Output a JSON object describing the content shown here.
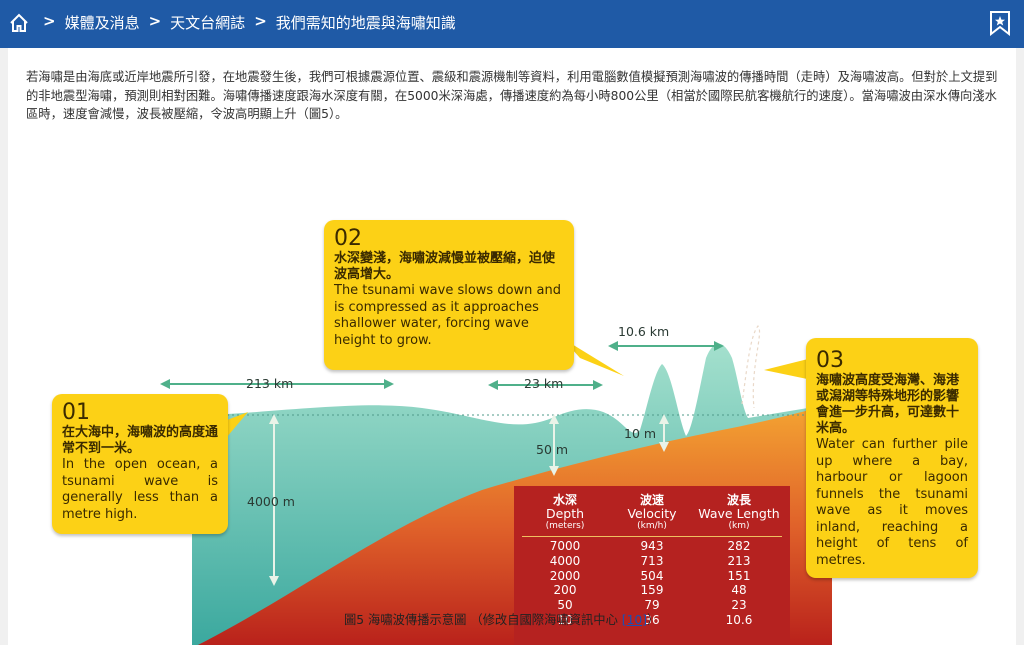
{
  "breadcrumb": {
    "items": [
      "媒體及消息",
      "天文台網誌",
      "我們需知的地震與海嘯知識"
    ],
    "separator": ">"
  },
  "intro_text": "若海嘯是由海底或近岸地震所引發，在地震發生後，我們可根據震源位置、震級和震源機制等資料，利用電腦數值模擬預測海嘯波的傳播時間（走時）及海嘯波高。但對於上文提到的非地震型海嘯，預測則相對困難。海嘯傳播速度跟海水深度有關，在5000米深海處，傳播速度約為每小時800公里（相當於國際民航客機航行的速度）。當海嘯波由深水傳向淺水區時，速度會減慢，波長被壓縮，令波高明顯上升（圖5）。",
  "figure": {
    "bubble1": {
      "num": "01",
      "zh": "在大海中，海嘯波的高度通常不到一米。",
      "en": "In the open ocean, a tsunami wave is generally less than a metre high."
    },
    "bubble2": {
      "num": "02",
      "zh": "水深變淺，海嘯波減慢並被壓縮，迫使波高增大。",
      "en": "The tsunami wave slows down and is compressed as it approaches shallower water, forcing wave height to grow."
    },
    "bubble3": {
      "num": "03",
      "zh": "海嘯波高度受海灣、海港或潟湖等特殊地形的影響會進一步升高，可達數十米高。",
      "en": "Water can further pile up where a bay, harbour or lagoon funnels the tsunami wave as it moves inland, reaching a height of tens of metres."
    },
    "labels": {
      "wl1": "213 km",
      "wl2": "23 km",
      "wl3": "10.6 km",
      "depth1": "4000 m",
      "depth2": "50 m",
      "depth3": "10 m"
    },
    "table": {
      "headers": [
        {
          "zh": "水深",
          "en": "Depth",
          "unit": "(meters)"
        },
        {
          "zh": "波速",
          "en": "Velocity",
          "unit": "(km/h)"
        },
        {
          "zh": "波長",
          "en": "Wave Length",
          "unit": "(km)"
        }
      ],
      "rows": [
        [
          "7000",
          "943",
          "282"
        ],
        [
          "4000",
          "713",
          "213"
        ],
        [
          "2000",
          "504",
          "151"
        ],
        [
          "200",
          "159",
          "48"
        ],
        [
          "50",
          "79",
          "23"
        ],
        [
          "10",
          "36",
          "10.6"
        ]
      ]
    },
    "colors": {
      "sea_top": "#9fdcc9",
      "sea_bottom": "#3aa89e",
      "land_top": "#f39a2a",
      "land_bottom": "#c0261d",
      "bubble": "#fcd116",
      "table_bg": "#b52220"
    }
  },
  "caption": {
    "text": "圖5 海嘯波傳播示意圖 （修改自國際海嘯資訊中心 ",
    "link": "[10]",
    "end": "）"
  }
}
